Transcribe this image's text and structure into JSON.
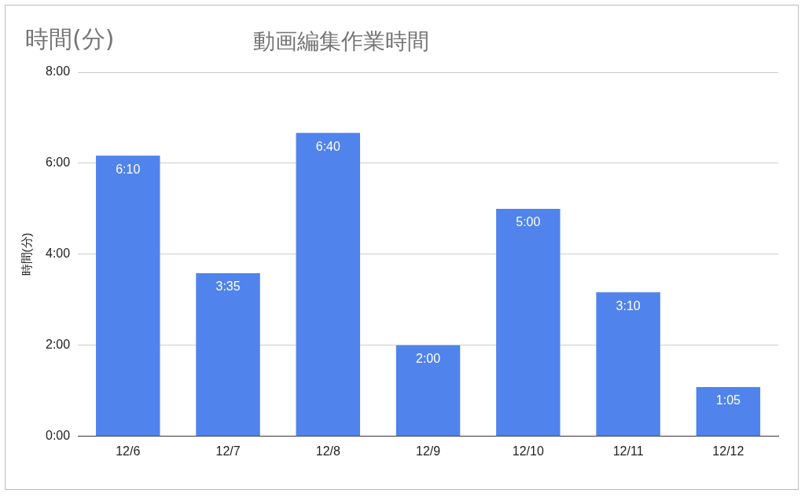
{
  "chart_data": {
    "type": "bar",
    "title": "動画編集作業時間",
    "ylabel": "時間(分)",
    "annotations": [
      "時間(分)"
    ],
    "categories": [
      "12/6",
      "12/7",
      "12/8",
      "12/9",
      "12/10",
      "12/11",
      "12/12"
    ],
    "values": [
      6.1667,
      3.5833,
      6.6667,
      2,
      5,
      3.1667,
      1.0833
    ],
    "value_labels": [
      "6:10",
      "3:35",
      "6:40",
      "2:00",
      "5:00",
      "3:10",
      "1:05"
    ],
    "color": "#5083ec",
    "ylim": [
      0,
      8
    ],
    "yticks": [
      {
        "value": 0,
        "label": "0:00"
      },
      {
        "value": 2,
        "label": "2:00"
      },
      {
        "value": 4,
        "label": "4:00"
      },
      {
        "value": 6,
        "label": "6:00"
      },
      {
        "value": 8,
        "label": "8:00"
      }
    ],
    "grid": "y",
    "legend": false
  }
}
